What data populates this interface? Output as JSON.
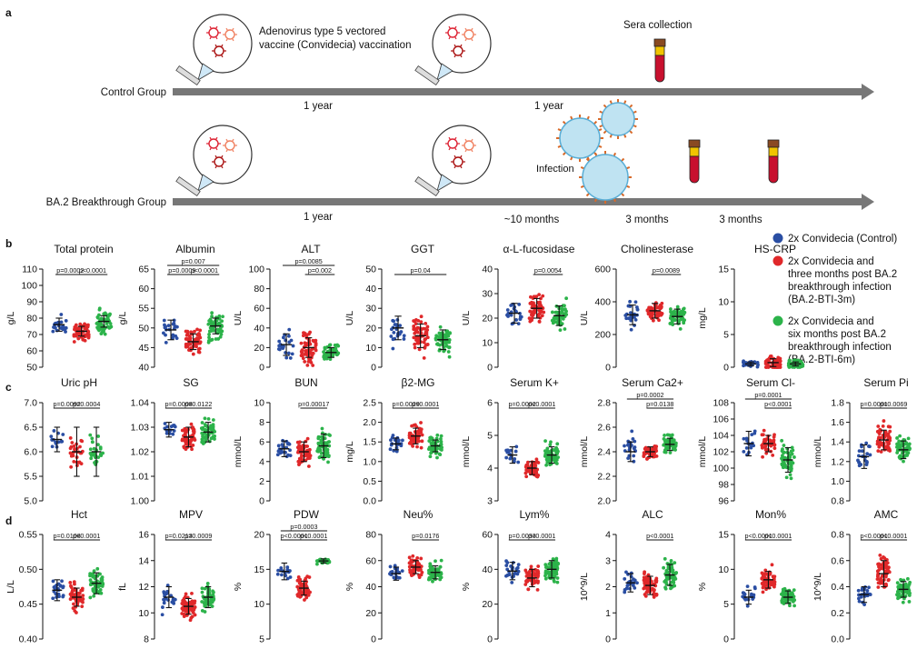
{
  "figure": {
    "panel_labels": [
      "a",
      "b",
      "c",
      "d"
    ]
  },
  "timeline": {
    "vaccine_text": [
      "Adenovirus type 5 vectored",
      "vaccine (Convidecia) vaccination"
    ],
    "sera_collection": "Sera collection",
    "control_group_label": "Control Group",
    "breakthrough_group_label": "BA.2 Breakthrough Group",
    "control_intervals": [
      "1 year",
      "1 year"
    ],
    "breakthrough_intervals": [
      "1 year",
      "~10 months",
      "3 months",
      "3 months"
    ],
    "infection_label": "Infection"
  },
  "colors": {
    "control": "#2a4ea3",
    "bti3m": "#e0282a",
    "bti6m": "#2cb34a",
    "arrow": "#777777"
  },
  "legend": {
    "items": [
      {
        "key": "control",
        "lines": [
          "2x Convidecia (Control)"
        ]
      },
      {
        "key": "bti3m",
        "lines": [
          "2x Convidecia and",
          "three months post BA.2",
          "breakthrough infection",
          "(BA.2-BTI-3m)"
        ]
      },
      {
        "key": "bti6m",
        "lines": [
          "2x Convidecia and",
          "six months post BA.2",
          "breakthrough infection",
          "(BA.2-BTI-6m)"
        ]
      }
    ]
  },
  "chart_data": [
    {
      "panel": "b",
      "type": "scatter",
      "title": "Total protein",
      "ylabel": "g/L",
      "ylim": [
        50,
        110
      ],
      "ticks": [
        50,
        60,
        70,
        80,
        90,
        100,
        110
      ],
      "groups": [
        {
          "mean": 76,
          "sd": 4,
          "spread": 9,
          "n": 22
        },
        {
          "mean": 72,
          "sd": 3,
          "spread": 8,
          "n": 60
        },
        {
          "mean": 78,
          "sd": 3.5,
          "spread": 10,
          "n": 60
        }
      ],
      "comparisons": [
        {
          "a": 0,
          "b": 1,
          "p": "p=0.0002",
          "level": 0
        },
        {
          "a": 1,
          "b": 2,
          "p": "p<0.0001",
          "level": 0
        }
      ]
    },
    {
      "panel": "b",
      "type": "scatter",
      "title": "Albumin",
      "ylabel": "g/L",
      "ylim": [
        40,
        65
      ],
      "ticks": [
        40,
        45,
        50,
        55,
        60,
        65
      ],
      "groups": [
        {
          "mean": 49.5,
          "sd": 2.5,
          "spread": 5,
          "n": 22
        },
        {
          "mean": 46.5,
          "sd": 2,
          "spread": 4.5,
          "n": 60
        },
        {
          "mean": 50.5,
          "sd": 2,
          "spread": 5,
          "n": 60
        }
      ],
      "comparisons": [
        {
          "a": 0,
          "b": 2,
          "p": "p=0.007",
          "level": 1
        },
        {
          "a": 0,
          "b": 1,
          "p": "p=0.0009",
          "level": 0
        },
        {
          "a": 1,
          "b": 2,
          "p": "p<0.0001",
          "level": 0
        }
      ]
    },
    {
      "panel": "b",
      "type": "scatter",
      "title": "ALT",
      "ylabel": "U/L",
      "ylim": [
        0,
        100
      ],
      "ticks": [
        0,
        20,
        40,
        60,
        80,
        100
      ],
      "groups": [
        {
          "mean": 23,
          "sd": 11,
          "spread": 20,
          "n": 22
        },
        {
          "mean": 20,
          "sd": 10,
          "spread": 25,
          "n": 60
        },
        {
          "mean": 15,
          "sd": 5,
          "spread": 12,
          "n": 60
        }
      ],
      "comparisons": [
        {
          "a": 0,
          "b": 2,
          "p": "p=0.0085",
          "level": 1
        },
        {
          "a": 1,
          "b": 2,
          "p": "p=0.002",
          "level": 0
        }
      ]
    },
    {
      "panel": "b",
      "type": "scatter",
      "title": "GGT",
      "ylabel": "U/L",
      "ylim": [
        0,
        50
      ],
      "ticks": [
        0,
        10,
        20,
        30,
        40,
        50
      ],
      "groups": [
        {
          "mean": 20,
          "sd": 6,
          "spread": 12,
          "n": 22
        },
        {
          "mean": 16,
          "sd": 6,
          "spread": 13,
          "n": 60
        },
        {
          "mean": 14,
          "sd": 5,
          "spread": 10,
          "n": 60
        }
      ],
      "comparisons": [
        {
          "a": 0,
          "b": 2,
          "p": "p=0.04",
          "level": 0
        }
      ]
    },
    {
      "panel": "b",
      "type": "scatter",
      "title": "α-L-fucosidase",
      "ylabel": "U/L",
      "ylim": [
        0,
        40
      ],
      "ticks": [
        0,
        10,
        20,
        30,
        40
      ],
      "groups": [
        {
          "mean": 22,
          "sd": 4,
          "spread": 8,
          "n": 22
        },
        {
          "mean": 24,
          "sd": 4,
          "spread": 8,
          "n": 60
        },
        {
          "mean": 21,
          "sd": 4,
          "spread": 8,
          "n": 60
        }
      ],
      "comparisons": [
        {
          "a": 1,
          "b": 2,
          "p": "p=0.0054",
          "level": 0
        }
      ]
    },
    {
      "panel": "b",
      "type": "scatter",
      "title": "Cholinesterase",
      "ylabel": "U/L",
      "ylim": [
        0,
        600
      ],
      "ticks": [
        0,
        200,
        400,
        600
      ],
      "groups": [
        {
          "mean": 320,
          "sd": 60,
          "spread": 100,
          "n": 22
        },
        {
          "mean": 345,
          "sd": 45,
          "spread": 90,
          "n": 60
        },
        {
          "mean": 310,
          "sd": 45,
          "spread": 80,
          "n": 60
        }
      ],
      "comparisons": [
        {
          "a": 1,
          "b": 2,
          "p": "p=0.0089",
          "level": 0
        }
      ]
    },
    {
      "panel": "b",
      "type": "scatter",
      "title": "HS-CRP",
      "ylabel": "mg/L",
      "ylim": [
        0,
        15
      ],
      "ticks": [
        0,
        5,
        10,
        15
      ],
      "groups": [
        {
          "mean": 0.5,
          "sd": 0.3,
          "spread": 1,
          "n": 22
        },
        {
          "mean": 0.7,
          "sd": 0.6,
          "spread": 1.5,
          "n": 60
        },
        {
          "mean": 0.5,
          "sd": 0.3,
          "spread": 1,
          "n": 60
        }
      ],
      "comparisons": []
    },
    {
      "panel": "c",
      "type": "scatter",
      "title": "Uric pH",
      "ylabel": "",
      "ylim": [
        5.0,
        7.0
      ],
      "ticks": [
        5.0,
        5.5,
        6.0,
        6.5,
        7.0
      ],
      "groups": [
        {
          "mean": 6.25,
          "sd": 0.25,
          "spread": 0.25,
          "n": 14
        },
        {
          "mean": 6.0,
          "sd": 0.5,
          "spread": 0.5,
          "n": 30
        },
        {
          "mean": 6.0,
          "sd": 0.5,
          "spread": 0.5,
          "n": 30
        }
      ],
      "comparisons": [
        {
          "a": 0,
          "b": 1,
          "p": "p=0.0092",
          "level": 0
        },
        {
          "a": 1,
          "b": 2,
          "p": "p=0.0004",
          "level": 0
        }
      ]
    },
    {
      "panel": "c",
      "type": "scatter",
      "title": "SG",
      "ylabel": "",
      "ylim": [
        1.0,
        1.04
      ],
      "ticks": [
        1.0,
        1.01,
        1.02,
        1.03,
        1.04
      ],
      "groups": [
        {
          "mean": 1.029,
          "sd": 0.003,
          "spread": 0.005,
          "n": 14
        },
        {
          "mean": 1.026,
          "sd": 0.004,
          "spread": 0.007,
          "n": 50
        },
        {
          "mean": 1.028,
          "sd": 0.004,
          "spread": 0.008,
          "n": 55
        }
      ],
      "comparisons": [
        {
          "a": 0,
          "b": 1,
          "p": "p=0.0008",
          "level": 0
        },
        {
          "a": 1,
          "b": 2,
          "p": "p=0.0122",
          "level": 0
        }
      ]
    },
    {
      "panel": "c",
      "type": "scatter",
      "title": "BUN",
      "ylabel": "mmol/L",
      "ylim": [
        0,
        10
      ],
      "ticks": [
        0,
        2,
        4,
        6,
        8,
        10
      ],
      "groups": [
        {
          "mean": 5.3,
          "sd": 0.8,
          "spread": 1.5,
          "n": 22
        },
        {
          "mean": 5,
          "sd": 1,
          "spread": 2,
          "n": 60
        },
        {
          "mean": 5.6,
          "sd": 1.2,
          "spread": 2.2,
          "n": 60
        }
      ],
      "comparisons": [
        {
          "a": 1,
          "b": 2,
          "p": "p=0.00017",
          "level": 0
        }
      ]
    },
    {
      "panel": "c",
      "type": "scatter",
      "title": "β2-MG",
      "ylabel": "mg/L",
      "ylim": [
        0,
        2.5
      ],
      "ticks": [
        0.0,
        0.5,
        1.0,
        1.5,
        2.0,
        2.5
      ],
      "groups": [
        {
          "mean": 1.45,
          "sd": 0.15,
          "spread": 0.3,
          "n": 22
        },
        {
          "mean": 1.65,
          "sd": 0.2,
          "spread": 0.4,
          "n": 60
        },
        {
          "mean": 1.4,
          "sd": 0.15,
          "spread": 0.35,
          "n": 60
        }
      ],
      "comparisons": [
        {
          "a": 0,
          "b": 1,
          "p": "p=0.0029",
          "level": 0
        },
        {
          "a": 1,
          "b": 2,
          "p": "p<0.0001",
          "level": 0
        }
      ]
    },
    {
      "panel": "c",
      "type": "scatter",
      "title": "Serum K+",
      "ylabel": "mmol/L",
      "ylim": [
        3,
        6
      ],
      "ticks": [
        3,
        4,
        5,
        6
      ],
      "groups": [
        {
          "mean": 4.4,
          "sd": 0.25,
          "spread": 0.5,
          "n": 14
        },
        {
          "mean": 4.0,
          "sd": 0.2,
          "spread": 0.4,
          "n": 55
        },
        {
          "mean": 4.4,
          "sd": 0.25,
          "spread": 0.5,
          "n": 60
        }
      ],
      "comparisons": [
        {
          "a": 0,
          "b": 1,
          "p": "p=0.0002",
          "level": 0
        },
        {
          "a": 1,
          "b": 2,
          "p": "p<0.0001",
          "level": 0
        }
      ]
    },
    {
      "panel": "c",
      "type": "scatter",
      "title": "Serum Ca2+",
      "ylabel": "mmol/L",
      "ylim": [
        2.0,
        2.8
      ],
      "ticks": [
        2.0,
        2.2,
        2.4,
        2.6,
        2.8
      ],
      "groups": [
        {
          "mean": 2.4,
          "sd": 0.08,
          "spread": 0.2,
          "n": 22
        },
        {
          "mean": 2.4,
          "sd": 0.04,
          "spread": 0.08,
          "n": 60
        },
        {
          "mean": 2.46,
          "sd": 0.05,
          "spread": 0.1,
          "n": 60
        }
      ],
      "comparisons": [
        {
          "a": 0,
          "b": 2,
          "p": "p=0.0002",
          "level": 1
        },
        {
          "a": 1,
          "b": 2,
          "p": "p=0.0138",
          "level": 0
        }
      ]
    },
    {
      "panel": "c",
      "type": "scatter",
      "title": "Serum Cl-",
      "ylabel": "mmol/L",
      "ylim": [
        96,
        108
      ],
      "ticks": [
        96,
        98,
        100,
        102,
        104,
        106,
        108
      ],
      "groups": [
        {
          "mean": 103,
          "sd": 1.5,
          "spread": 2.5,
          "n": 16
        },
        {
          "mean": 103,
          "sd": 1,
          "spread": 2,
          "n": 40
        },
        {
          "mean": 101,
          "sd": 1.5,
          "spread": 3,
          "n": 55
        }
      ],
      "comparisons": [
        {
          "a": 0,
          "b": 2,
          "p": "p=0.0001",
          "level": 1
        },
        {
          "a": 1,
          "b": 2,
          "p": "p<0.0001",
          "level": 0
        }
      ]
    },
    {
      "panel": "c",
      "type": "scatter",
      "title": "Serum Pi",
      "ylabel": "mmol/L",
      "ylim": [
        0.8,
        1.8
      ],
      "ticks": [
        0.8,
        1.0,
        1.2,
        1.4,
        1.6,
        1.8
      ],
      "groups": [
        {
          "mean": 1.25,
          "sd": 0.12,
          "spread": 0.22,
          "n": 22
        },
        {
          "mean": 1.42,
          "sd": 0.1,
          "spread": 0.22,
          "n": 60
        },
        {
          "mean": 1.32,
          "sd": 0.09,
          "spread": 0.18,
          "n": 60
        }
      ],
      "comparisons": [
        {
          "a": 0,
          "b": 1,
          "p": "p=0.0001",
          "level": 0
        },
        {
          "a": 1,
          "b": 2,
          "p": "p=0.0069",
          "level": 0
        }
      ]
    },
    {
      "panel": "d",
      "type": "scatter",
      "title": "Hct",
      "ylabel": "L/L",
      "ylim": [
        0.4,
        0.55
      ],
      "ticks": [
        0.4,
        0.45,
        0.5,
        0.55
      ],
      "groups": [
        {
          "mean": 0.47,
          "sd": 0.015,
          "spread": 0.03,
          "n": 22
        },
        {
          "mean": 0.46,
          "sd": 0.013,
          "spread": 0.03,
          "n": 60
        },
        {
          "mean": 0.48,
          "sd": 0.015,
          "spread": 0.03,
          "n": 60
        }
      ],
      "comparisons": [
        {
          "a": 0,
          "b": 1,
          "p": "p=0.0108",
          "level": 0
        },
        {
          "a": 1,
          "b": 2,
          "p": "p<0.0001",
          "level": 0
        }
      ]
    },
    {
      "panel": "d",
      "type": "scatter",
      "title": "MPV",
      "ylabel": "fL",
      "ylim": [
        8,
        16
      ],
      "ticks": [
        8,
        10,
        12,
        14,
        16
      ],
      "groups": [
        {
          "mean": 11.2,
          "sd": 0.8,
          "spread": 1.6,
          "n": 22
        },
        {
          "mean": 10.5,
          "sd": 0.6,
          "spread": 1.3,
          "n": 60
        },
        {
          "mean": 11.2,
          "sd": 0.8,
          "spread": 1.6,
          "n": 60
        }
      ],
      "comparisons": [
        {
          "a": 0,
          "b": 1,
          "p": "p=0.0213",
          "level": 0
        },
        {
          "a": 1,
          "b": 2,
          "p": "p=0.0009",
          "level": 0
        }
      ]
    },
    {
      "panel": "d",
      "type": "scatter",
      "title": "PDW",
      "ylabel": "%",
      "ylim": [
        5,
        20
      ],
      "ticks": [
        5,
        10,
        15,
        20
      ],
      "groups": [
        {
          "mean": 14.7,
          "sd": 1.2,
          "spread": 1.6,
          "n": 14
        },
        {
          "mean": 12.3,
          "sd": 1,
          "spread": 2.2,
          "n": 60
        },
        {
          "mean": 16.2,
          "sd": 0.3,
          "spread": 0.5,
          "n": 40
        }
      ],
      "comparisons": [
        {
          "a": 0,
          "b": 2,
          "p": "p=0.0003",
          "level": 1
        },
        {
          "a": 0,
          "b": 1,
          "p": "p<0.0001",
          "level": 0
        },
        {
          "a": 1,
          "b": 2,
          "p": "p<0.0001",
          "level": 0
        }
      ]
    },
    {
      "panel": "d",
      "type": "scatter",
      "title": "Neu%",
      "ylabel": "%",
      "ylim": [
        0,
        80
      ],
      "ticks": [
        0,
        20,
        40,
        60,
        80
      ],
      "groups": [
        {
          "mean": 50,
          "sd": 5,
          "spread": 10,
          "n": 22
        },
        {
          "mean": 55,
          "sd": 5,
          "spread": 10,
          "n": 60
        },
        {
          "mean": 51,
          "sd": 5,
          "spread": 10,
          "n": 60
        }
      ],
      "comparisons": [
        {
          "a": 1,
          "b": 2,
          "p": "p=0.0176",
          "level": 0
        }
      ]
    },
    {
      "panel": "d",
      "type": "scatter",
      "title": "Lym%",
      "ylabel": "%",
      "ylim": [
        0,
        60
      ],
      "ticks": [
        0,
        20,
        40,
        60
      ],
      "groups": [
        {
          "mean": 39,
          "sd": 5,
          "spread": 10,
          "n": 22
        },
        {
          "mean": 35,
          "sd": 5,
          "spread": 10,
          "n": 60
        },
        {
          "mean": 40,
          "sd": 5,
          "spread": 10,
          "n": 60
        }
      ],
      "comparisons": [
        {
          "a": 0,
          "b": 1,
          "p": "p=0.0033",
          "level": 0
        },
        {
          "a": 1,
          "b": 2,
          "p": "p<0.0001",
          "level": 0
        }
      ]
    },
    {
      "panel": "d",
      "type": "scatter",
      "title": "ALC",
      "ylabel": "10^9/L",
      "ylim": [
        0,
        4
      ],
      "ticks": [
        0,
        1,
        2,
        3,
        4
      ],
      "groups": [
        {
          "mean": 2.15,
          "sd": 0.35,
          "spread": 0.6,
          "n": 22
        },
        {
          "mean": 2.05,
          "sd": 0.35,
          "spread": 0.7,
          "n": 60
        },
        {
          "mean": 2.45,
          "sd": 0.4,
          "spread": 0.8,
          "n": 60
        }
      ],
      "comparisons": [
        {
          "a": 1,
          "b": 2,
          "p": "p<0.0001",
          "level": 0
        }
      ]
    },
    {
      "panel": "d",
      "type": "scatter",
      "title": "Mon%",
      "ylabel": "%",
      "ylim": [
        0,
        15
      ],
      "ticks": [
        0,
        5,
        10,
        15
      ],
      "groups": [
        {
          "mean": 6,
          "sd": 1,
          "spread": 2,
          "n": 22
        },
        {
          "mean": 8.5,
          "sd": 1.2,
          "spread": 2.5,
          "n": 60
        },
        {
          "mean": 6,
          "sd": 0.9,
          "spread": 2,
          "n": 60
        }
      ],
      "comparisons": [
        {
          "a": 0,
          "b": 1,
          "p": "p<0.0001",
          "level": 0
        },
        {
          "a": 1,
          "b": 2,
          "p": "p<0.0001",
          "level": 0
        }
      ]
    },
    {
      "panel": "d",
      "type": "scatter",
      "title": "AMC",
      "ylabel": "10^9/L",
      "ylim": [
        0,
        0.8
      ],
      "ticks": [
        0,
        0.2,
        0.4,
        0.6,
        0.8
      ],
      "groups": [
        {
          "mean": 0.34,
          "sd": 0.06,
          "spread": 0.12,
          "n": 22
        },
        {
          "mean": 0.5,
          "sd": 0.1,
          "spread": 0.2,
          "n": 60
        },
        {
          "mean": 0.38,
          "sd": 0.06,
          "spread": 0.12,
          "n": 60
        }
      ],
      "comparisons": [
        {
          "a": 0,
          "b": 1,
          "p": "p<0.0001",
          "level": 0
        },
        {
          "a": 1,
          "b": 2,
          "p": "p<0.0001",
          "level": 0
        }
      ]
    }
  ]
}
